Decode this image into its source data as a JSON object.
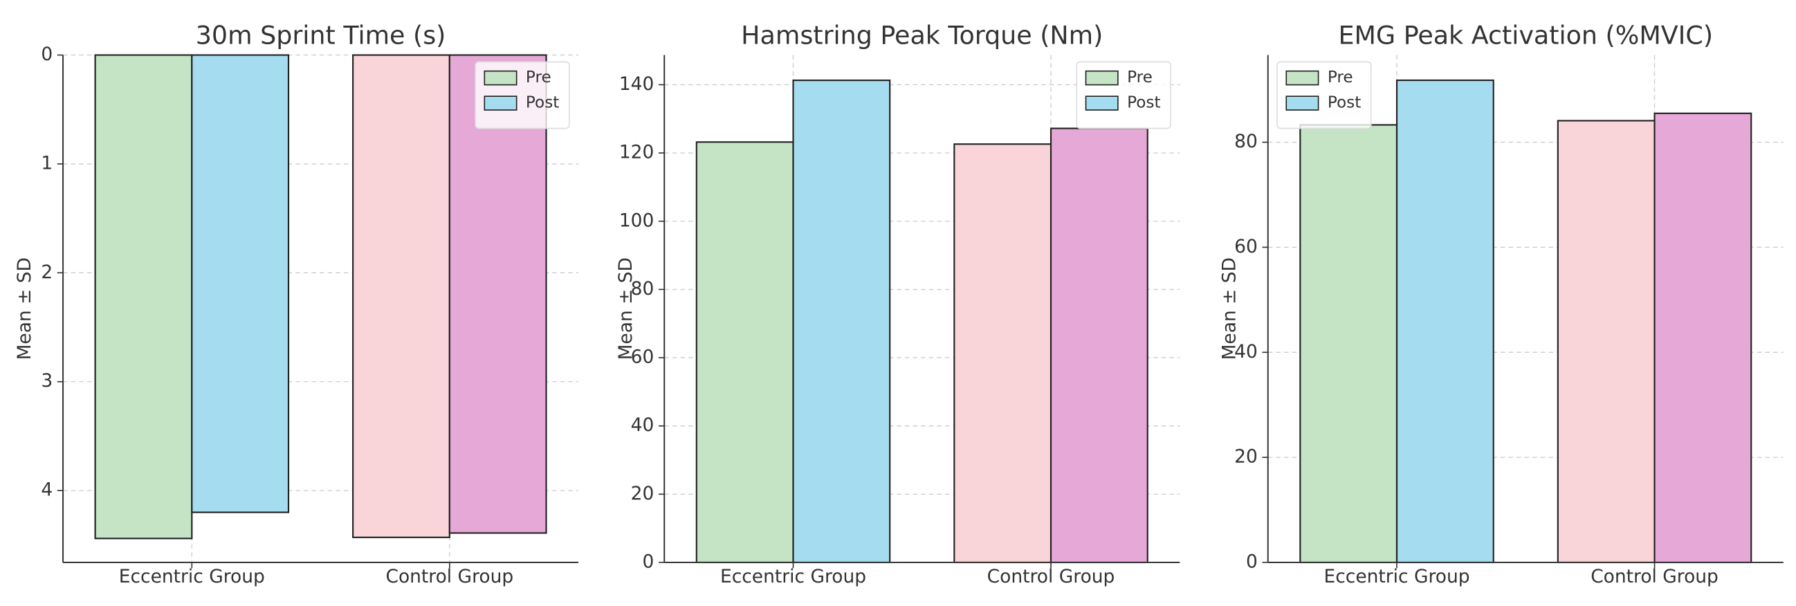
{
  "chart_data": [
    {
      "type": "bar",
      "title": "30m Sprint Time (s)",
      "ylabel": "Mean ± SD",
      "categories": [
        "Eccentric Group",
        "Control Group"
      ],
      "series": [
        {
          "name": "Pre",
          "color": "#c5e3c5",
          "colors": [
            "#c5e3c5",
            "#f9d5da"
          ],
          "values": [
            4.44,
            4.43
          ]
        },
        {
          "name": "Post",
          "color": "#a6dcef",
          "colors": [
            "#a6dcef",
            "#e6a8d7"
          ],
          "values": [
            4.2,
            4.39
          ]
        }
      ],
      "ylim": [
        4.66,
        0
      ],
      "yticks": [
        0,
        1,
        2,
        3,
        4
      ],
      "grid": true,
      "legend": "upper right"
    },
    {
      "type": "bar",
      "title": "Hamstring Peak Torque (Nm)",
      "ylabel": "Mean ± SD",
      "categories": [
        "Eccentric Group",
        "Control Group"
      ],
      "series": [
        {
          "name": "Pre",
          "color": "#c5e3c5",
          "colors": [
            "#c5e3c5",
            "#f9d5da"
          ],
          "values": [
            123.2,
            122.6
          ]
        },
        {
          "name": "Post",
          "color": "#a6dcef",
          "colors": [
            "#a6dcef",
            "#e6a8d7"
          ],
          "values": [
            141.3,
            127.2
          ]
        }
      ],
      "ylim": [
        0,
        148.7
      ],
      "yticks": [
        0,
        20,
        40,
        60,
        80,
        100,
        120,
        140
      ],
      "grid": true,
      "legend": "upper right"
    },
    {
      "type": "bar",
      "title": "EMG Peak Activation (%MVIC)",
      "ylabel": "Mean ± SD",
      "categories": [
        "Eccentric Group",
        "Control Group"
      ],
      "series": [
        {
          "name": "Pre",
          "color": "#c5e3c5",
          "colors": [
            "#c5e3c5",
            "#f9d5da"
          ],
          "values": [
            83.3,
            84.1
          ]
        },
        {
          "name": "Post",
          "color": "#a6dcef",
          "colors": [
            "#a6dcef",
            "#e6a8d7"
          ],
          "values": [
            91.8,
            85.5
          ]
        }
      ],
      "ylim": [
        0,
        96.6
      ],
      "yticks": [
        0,
        20,
        40,
        60,
        80
      ],
      "grid": true,
      "legend": "upper left"
    }
  ]
}
